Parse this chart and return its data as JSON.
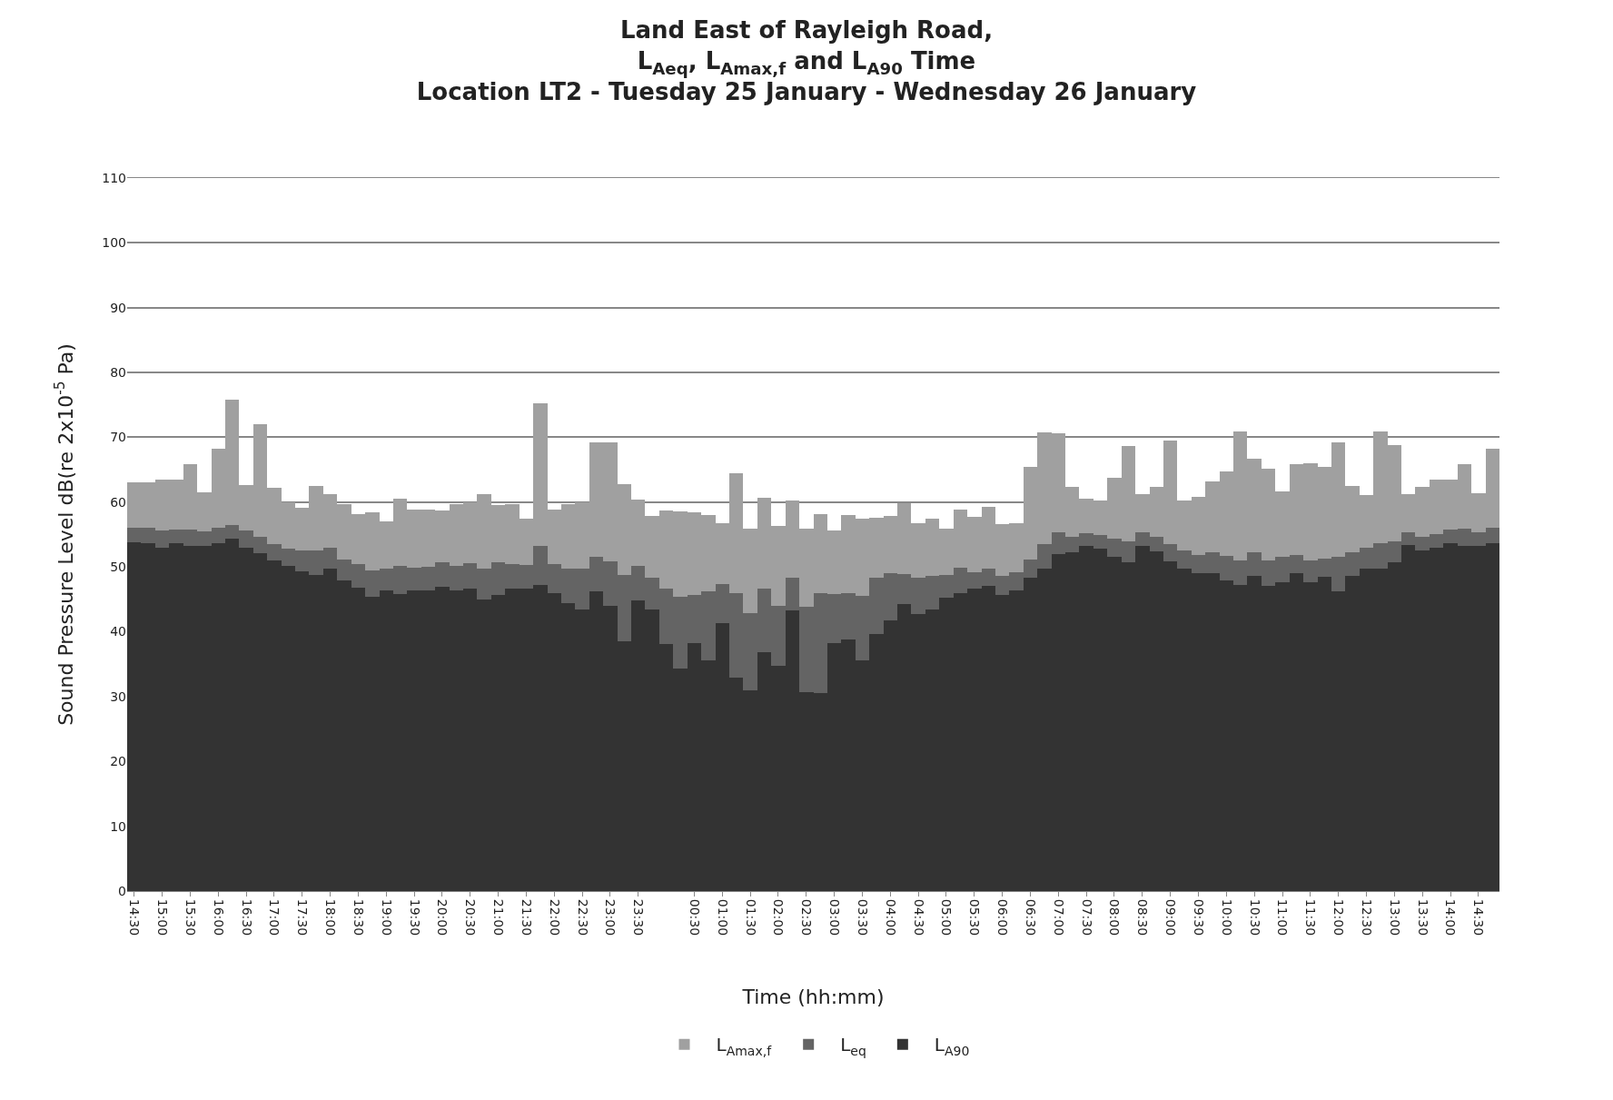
{
  "chart_data": {
    "type": "bar",
    "title": "Land East of Rayleigh Road,\nL$_{Aeq}$, L$_{Amax,f}$ and L$_{A90}$ Time\nLocation LT2 - Tuesday 25 January - Wednesday 26 January",
    "xlabel": "Time (hh:mm)",
    "ylabel": "Sound Pressure Level dB(re 2x10$^{-5}$ Pa)",
    "categories": [
      "14:30",
      null,
      "15:00",
      null,
      "15:30",
      null,
      "16:00",
      null,
      "16:30",
      null,
      "17:00",
      null,
      "17:30",
      null,
      "18:00",
      null,
      "18:30",
      null,
      "19:00",
      null,
      "19:30",
      null,
      "20:00",
      null,
      "20:30",
      null,
      "21:00",
      null,
      "21:30",
      null,
      "22:00",
      null,
      "22:30",
      null,
      "23:00",
      null,
      "23:30",
      null,
      null,
      null,
      "00:30",
      null,
      "01:00",
      null,
      "01:30",
      null,
      "02:00",
      null,
      "02:30",
      null,
      "03:00",
      null,
      "03:30",
      null,
      "04:00",
      null,
      "04:30",
      null,
      "05:00",
      null,
      "05:30",
      null,
      "06:00",
      null,
      "06:30",
      null,
      "07:00",
      null,
      "07:30",
      null,
      "08:00",
      null,
      "08:30",
      null,
      "09:00",
      null,
      "09:30",
      null,
      "10:00",
      null,
      "10:30",
      null,
      "11:00",
      null,
      "11:30",
      null,
      "12:00",
      null,
      "12:30",
      null,
      "13:00",
      null,
      "13:30",
      null,
      "14:00",
      null,
      "14:30",
      null
    ],
    "stacked": true,
    "series": [
      {
        "name": "L$_{A90}$",
        "color": "#333333",
        "values": [
          53.8,
          53.6,
          53.0,
          53.6,
          53.2,
          53.2,
          53.6,
          54.4,
          53.0,
          52.1,
          51.0,
          50.1,
          49.3,
          48.7,
          49.7,
          47.9,
          46.8,
          45.4,
          46.4,
          45.8,
          46.4,
          46.4,
          47.0,
          46.4,
          46.6,
          45.0,
          45.7,
          46.6,
          46.6,
          47.2,
          46.0,
          44.4,
          43.4,
          46.3,
          44.0,
          38.6,
          44.9,
          43.5,
          38.1,
          34.4,
          38.3,
          35.6,
          41.4,
          33.0,
          30.9,
          36.9,
          34.8,
          43.3,
          30.7,
          30.5,
          38.3,
          38.8,
          35.6,
          39.7,
          41.8,
          44.3,
          42.7,
          43.4,
          45.2,
          46.0,
          46.6,
          47.1,
          45.7,
          46.4,
          48.4,
          49.7,
          52.0,
          52.3,
          53.2,
          52.8,
          51.5,
          50.7,
          53.3,
          52.4,
          50.8,
          49.8,
          49.0,
          49.1,
          47.9,
          47.2,
          48.6,
          47.1,
          47.7,
          49.0,
          47.7,
          48.5,
          46.3,
          48.6,
          49.7,
          49.7,
          50.7,
          53.4,
          52.5,
          53.0,
          53.6,
          53.2,
          53.3,
          53.6
        ]
      },
      {
        "name": "L$_{eq}$",
        "color": "#646464",
        "values": [
          2.2,
          2.4,
          2.7,
          2.2,
          2.6,
          2.3,
          2.4,
          2.1,
          2.6,
          2.5,
          2.5,
          2.7,
          3.3,
          3.8,
          3.3,
          3.2,
          3.7,
          4.0,
          3.3,
          4.3,
          3.5,
          3.6,
          3.7,
          3.7,
          4.0,
          4.8,
          5.0,
          3.9,
          3.7,
          6.0,
          4.5,
          5.3,
          6.3,
          5.2,
          6.8,
          10.2,
          5.3,
          4.9,
          8.5,
          11.0,
          7.4,
          10.7,
          6.0,
          13.0,
          12.0,
          9.8,
          9.2,
          5.1,
          13.1,
          15.4,
          7.5,
          7.2,
          10.0,
          8.7,
          7.2,
          4.6,
          5.7,
          5.2,
          3.5,
          3.9,
          2.6,
          2.7,
          2.9,
          2.8,
          2.8,
          3.8,
          3.4,
          2.4,
          2.0,
          2.2,
          2.9,
          3.2,
          2.0,
          2.2,
          2.7,
          2.7,
          2.9,
          3.2,
          3.8,
          3.8,
          3.6,
          3.9,
          3.8,
          2.9,
          3.3,
          2.8,
          5.2,
          3.7,
          3.3,
          3.9,
          3.3,
          1.9,
          2.2,
          2.1,
          2.2,
          2.7,
          2.1,
          2.4
        ]
      },
      {
        "name": "L$_{Amax,f}$",
        "color": "#a0a0a0",
        "values": [
          7.0,
          7.1,
          7.8,
          7.7,
          10.0,
          6.0,
          12.2,
          19.3,
          7.0,
          17.4,
          8.7,
          7.2,
          6.6,
          10.0,
          8.2,
          8.6,
          7.7,
          9.0,
          7.3,
          10.4,
          9.0,
          8.8,
          8.0,
          9.6,
          9.4,
          11.5,
          8.9,
          9.2,
          7.2,
          22.0,
          8.4,
          10.0,
          10.3,
          17.7,
          18.4,
          14.0,
          10.2,
          9.5,
          12.1,
          13.2,
          12.7,
          11.7,
          9.3,
          18.5,
          13.0,
          14.0,
          12.4,
          11.9,
          12.1,
          12.3,
          9.8,
          12.0,
          11.8,
          9.2,
          8.9,
          11.0,
          8.4,
          8.8,
          7.2,
          8.9,
          8.6,
          9.5,
          8.0,
          7.6,
          14.3,
          17.3,
          15.2,
          7.6,
          5.3,
          5.3,
          9.4,
          14.8,
          6.0,
          7.7,
          16.0,
          7.8,
          8.9,
          10.9,
          13.1,
          19.9,
          14.5,
          14.1,
          10.2,
          13.9,
          15.0,
          14.1,
          17.7,
          10.2,
          8.1,
          17.3,
          14.8,
          6.0,
          7.7,
          8.4,
          7.7,
          10.0,
          6.0,
          12.3
        ]
      }
    ],
    "ylim": [
      0,
      110
    ],
    "yticks": [
      0,
      10,
      20,
      30,
      40,
      50,
      60,
      70,
      80,
      90,
      100,
      110
    ],
    "grid": "y",
    "legend": "bottom"
  }
}
